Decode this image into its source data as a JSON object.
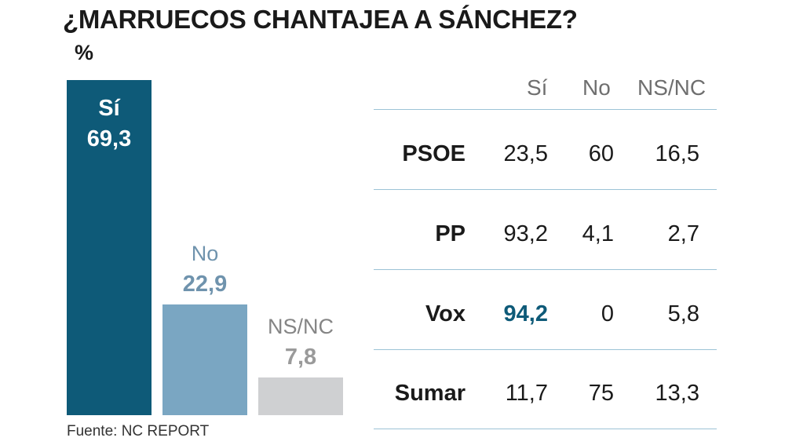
{
  "title": "¿MARRUECOS CHANTAJEA A SÁNCHEZ?",
  "unit": "%",
  "source": "Fuente: NC REPORT",
  "colors": {
    "si": "#0e5a78",
    "no": "#7aa6c2",
    "nsnc": "#cfd0d2",
    "rule": "#9cc3d6"
  },
  "chart_data": {
    "type": "bar",
    "categories": [
      "Sí",
      "No",
      "NS/NC"
    ],
    "values": [
      69.3,
      22.9,
      7.8
    ],
    "value_labels": [
      "69,3",
      "22,9",
      "7,8"
    ],
    "ylim": [
      0,
      69.3
    ]
  },
  "table": {
    "headers": [
      "Sí",
      "No",
      "NS/NC"
    ],
    "rows": [
      {
        "party": "PSOE",
        "values": [
          "23,5",
          "60",
          "16,5"
        ]
      },
      {
        "party": "PP",
        "values": [
          "93,2",
          "4,1",
          "2,7"
        ]
      },
      {
        "party": "Vox",
        "values": [
          "94,2",
          "0",
          "5,8"
        ],
        "highlight_index": 0
      },
      {
        "party": "Sumar",
        "values": [
          "11,7",
          "75",
          "13,3"
        ]
      }
    ]
  }
}
